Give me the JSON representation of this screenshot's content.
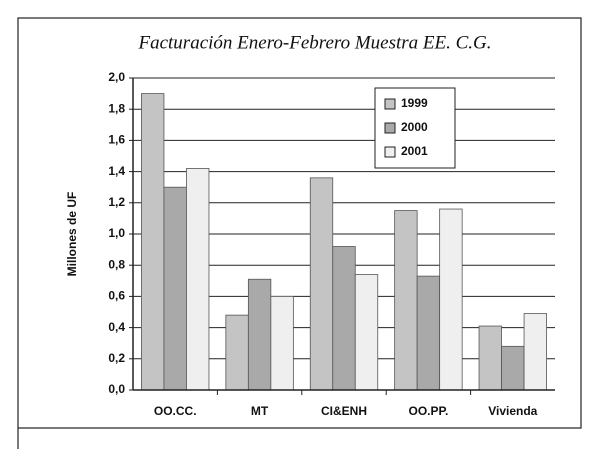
{
  "chart_data": {
    "type": "bar",
    "title": "Facturación Enero-Febrero Muestra EE. C.G.",
    "ylabel": "Millones de UF",
    "categories": [
      "OO.CC.",
      "MT",
      "CI&ENH",
      "OO.PP.",
      "Vivienda"
    ],
    "series": [
      {
        "name": "1999",
        "color": "#c4c4c4",
        "values": [
          1.9,
          0.48,
          1.36,
          1.15,
          0.41
        ]
      },
      {
        "name": "2000",
        "color": "#a9a9a9",
        "values": [
          1.3,
          0.71,
          0.92,
          0.73,
          0.28
        ]
      },
      {
        "name": "2001",
        "color": "#efefef",
        "values": [
          1.42,
          0.6,
          0.74,
          1.16,
          0.49
        ]
      }
    ],
    "ylim": [
      0,
      2
    ],
    "yticks": [
      {
        "value": 0,
        "label": "0,0"
      },
      {
        "value": 0.2,
        "label": "0,2"
      },
      {
        "value": 0.4,
        "label": "0,4"
      },
      {
        "value": 0.6,
        "label": "0,6"
      },
      {
        "value": 0.8,
        "label": "0,8"
      },
      {
        "value": 1,
        "label": "1,0"
      },
      {
        "value": 1.2,
        "label": "1,2"
      },
      {
        "value": 1.4,
        "label": "1,4"
      },
      {
        "value": 1.6,
        "label": "1,6"
      },
      {
        "value": 1.8,
        "label": "1,8"
      },
      {
        "value": 2,
        "label": "2,0"
      }
    ],
    "grid": true,
    "legend": "top-right"
  }
}
